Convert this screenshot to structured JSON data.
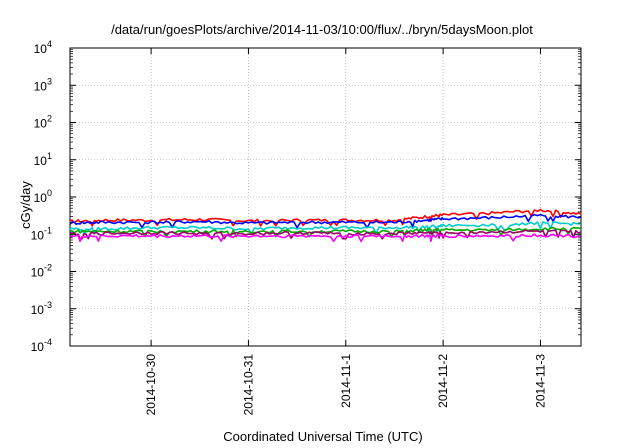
{
  "chart_data": {
    "type": "line",
    "title": "/data/run/goesPlots/archive/2014-11-03/10:00/flux/../bryn/5daysMoon.plot",
    "xlabel": "Coordinated Universal Time (UTC)",
    "ylabel": "cGy/day",
    "yscale": "log",
    "ylim": [
      0.0001,
      10000
    ],
    "yticks": [
      {
        "mant": "10",
        "exp": "-4"
      },
      {
        "mant": "10",
        "exp": "-3"
      },
      {
        "mant": "10",
        "exp": "-2"
      },
      {
        "mant": "10",
        "exp": "-1"
      },
      {
        "mant": "10",
        "exp": "0"
      },
      {
        "mant": "10",
        "exp": "1"
      },
      {
        "mant": "10",
        "exp": "2"
      },
      {
        "mant": "10",
        "exp": "3"
      },
      {
        "mant": "10",
        "exp": "4"
      }
    ],
    "x_range": [
      "2014-10-29 04:00",
      "2014-11-03 10:00"
    ],
    "xticks": [
      "2014-10-30",
      "2014-10-31",
      "2014-11-1",
      "2014-11-2",
      "2014-11-3"
    ],
    "xtick_dates": [
      "2014-10-30 00:00",
      "2014-10-31 00:00",
      "2014-11-01 00:00",
      "2014-11-02 00:00",
      "2014-11-03 00:00"
    ],
    "grid": true,
    "legend": "none",
    "series": [
      {
        "color": "#ff0000",
        "x": [
          "2014-10-29 04:00",
          "2014-10-29 12:00",
          "2014-10-30 00:00",
          "2014-10-30 12:00",
          "2014-10-31 00:00",
          "2014-10-31 12:00",
          "2014-11-01 00:00",
          "2014-11-01 12:00",
          "2014-11-01 20:00",
          "2014-11-02 00:00",
          "2014-11-02 12:00",
          "2014-11-03 00:00",
          "2014-11-03 10:00"
        ],
        "values": [
          0.22,
          0.24,
          0.24,
          0.25,
          0.23,
          0.24,
          0.24,
          0.24,
          0.3,
          0.33,
          0.37,
          0.45,
          0.35
        ]
      },
      {
        "color": "#0000ff",
        "x": [
          "2014-10-29 04:00",
          "2014-10-29 12:00",
          "2014-10-30 00:00",
          "2014-10-30 12:00",
          "2014-10-31 00:00",
          "2014-10-31 12:00",
          "2014-11-01 00:00",
          "2014-11-01 12:00",
          "2014-11-01 20:00",
          "2014-11-02 00:00",
          "2014-11-02 12:00",
          "2014-11-03 00:00",
          "2014-11-03 10:00"
        ],
        "values": [
          0.2,
          0.21,
          0.21,
          0.22,
          0.2,
          0.21,
          0.21,
          0.21,
          0.24,
          0.26,
          0.28,
          0.32,
          0.29
        ]
      },
      {
        "color": "#00cccc",
        "x": [
          "2014-10-29 04:00",
          "2014-10-29 12:00",
          "2014-10-30 00:00",
          "2014-10-30 12:00",
          "2014-10-31 00:00",
          "2014-10-31 12:00",
          "2014-11-01 00:00",
          "2014-11-01 12:00",
          "2014-11-01 20:00",
          "2014-11-02 00:00",
          "2014-11-02 12:00",
          "2014-11-03 00:00",
          "2014-11-03 10:00"
        ],
        "values": [
          0.14,
          0.14,
          0.15,
          0.15,
          0.14,
          0.15,
          0.15,
          0.15,
          0.16,
          0.17,
          0.18,
          0.2,
          0.19
        ]
      },
      {
        "color": "#00aa00",
        "x": [
          "2014-10-29 04:00",
          "2014-10-29 12:00",
          "2014-10-30 00:00",
          "2014-10-30 12:00",
          "2014-10-31 00:00",
          "2014-10-31 12:00",
          "2014-11-01 00:00",
          "2014-11-01 12:00",
          "2014-11-01 20:00",
          "2014-11-02 00:00",
          "2014-11-02 12:00",
          "2014-11-03 00:00",
          "2014-11-03 10:00"
        ],
        "values": [
          0.12,
          0.12,
          0.12,
          0.12,
          0.12,
          0.12,
          0.12,
          0.12,
          0.13,
          0.13,
          0.13,
          0.14,
          0.14
        ]
      },
      {
        "color": "#990066",
        "x": [
          "2014-10-29 04:00",
          "2014-10-29 12:00",
          "2014-10-30 00:00",
          "2014-10-30 12:00",
          "2014-10-31 00:00",
          "2014-10-31 12:00",
          "2014-11-01 00:00",
          "2014-11-01 12:00",
          "2014-11-01 20:00",
          "2014-11-02 00:00",
          "2014-11-02 12:00",
          "2014-11-03 00:00",
          "2014-11-03 10:00"
        ],
        "values": [
          0.105,
          0.105,
          0.11,
          0.105,
          0.105,
          0.11,
          0.105,
          0.105,
          0.11,
          0.11,
          0.115,
          0.12,
          0.115
        ]
      },
      {
        "color": "#ff00ff",
        "x": [
          "2014-10-29 04:00",
          "2014-10-29 12:00",
          "2014-10-30 00:00",
          "2014-10-30 12:00",
          "2014-10-31 00:00",
          "2014-10-31 12:00",
          "2014-11-01 00:00",
          "2014-11-01 12:00",
          "2014-11-01 20:00",
          "2014-11-02 00:00",
          "2014-11-02 12:00",
          "2014-11-03 00:00",
          "2014-11-03 10:00"
        ],
        "values": [
          0.09,
          0.09,
          0.09,
          0.09,
          0.09,
          0.09,
          0.09,
          0.09,
          0.09,
          0.09,
          0.09,
          0.095,
          0.09
        ]
      }
    ]
  }
}
